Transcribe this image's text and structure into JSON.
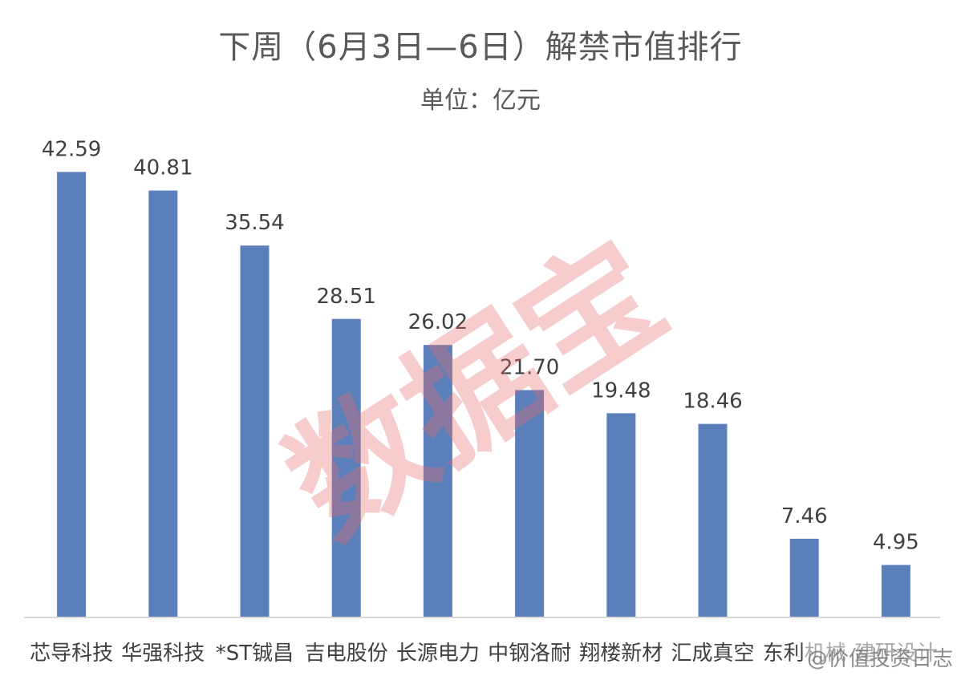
{
  "chart_data": {
    "type": "bar",
    "title": "下周（6月3日—6日）解禁市值排行",
    "subtitle": "单位：亿元",
    "categories": [
      "芯导科技",
      "华强科技",
      "*ST铖昌",
      "吉电股份",
      "长源电力",
      "中钢洛耐",
      "翔楼新材",
      "汇成真空",
      "东利机械",
      "建研设计"
    ],
    "values": [
      42.59,
      40.81,
      35.54,
      28.51,
      26.02,
      21.7,
      19.48,
      18.46,
      7.46,
      4.95
    ],
    "value_labels": [
      "42.59",
      "40.81",
      "35.54",
      "28.51",
      "26.02",
      "21.70",
      "19.48",
      "18.46",
      "7.46",
      "4.95"
    ],
    "ylim": [
      0,
      46
    ],
    "grid": false,
    "bar_color": "#5b7fba"
  },
  "watermark": {
    "text": "数据宝",
    "color": "#e86e6e"
  },
  "credit": {
    "text": "@价值投资日志"
  }
}
